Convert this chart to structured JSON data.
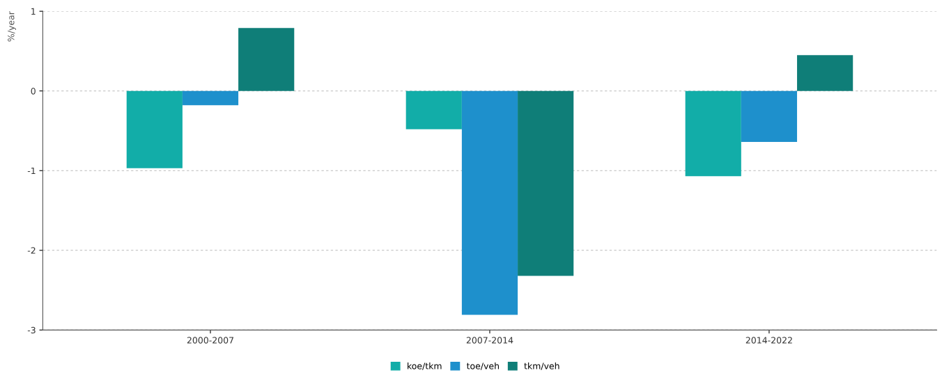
{
  "chart_data": {
    "type": "bar",
    "ylabel": "%/year",
    "categories": [
      "2000-2007",
      "2007-2014",
      "2014-2022"
    ],
    "series": [
      {
        "name": "koe/tkm",
        "color": "#12ada8",
        "values": [
          -0.97,
          -0.48,
          -1.07
        ]
      },
      {
        "name": "toe/veh",
        "color": "#1e90cc",
        "values": [
          -0.18,
          -2.81,
          -0.64
        ]
      },
      {
        "name": "tkm/veh",
        "color": "#0f7e78",
        "values": [
          0.79,
          -2.32,
          0.45
        ]
      }
    ],
    "ylim": [
      -3,
      1
    ],
    "yticks": [
      {
        "value": 1,
        "label": "1"
      },
      {
        "value": 0,
        "label": "0"
      },
      {
        "value": -1,
        "label": "-1"
      },
      {
        "value": -2,
        "label": "-2"
      },
      {
        "value": -3,
        "label": "-3"
      }
    ],
    "grid": "y",
    "legend": "bottom"
  }
}
